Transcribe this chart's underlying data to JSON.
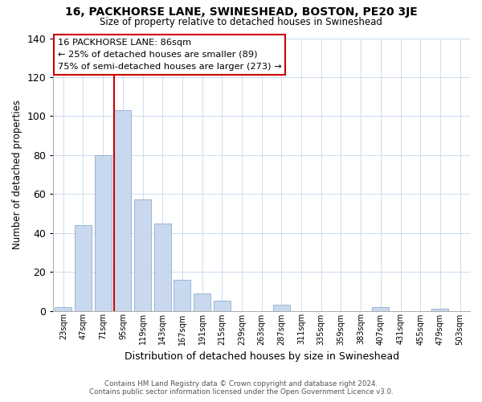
{
  "title": "16, PACKHORSE LANE, SWINESHEAD, BOSTON, PE20 3JE",
  "subtitle": "Size of property relative to detached houses in Swineshead",
  "xlabel": "Distribution of detached houses by size in Swineshead",
  "ylabel": "Number of detached properties",
  "bar_labels": [
    "23sqm",
    "47sqm",
    "71sqm",
    "95sqm",
    "119sqm",
    "143sqm",
    "167sqm",
    "191sqm",
    "215sqm",
    "239sqm",
    "263sqm",
    "287sqm",
    "311sqm",
    "335sqm",
    "359sqm",
    "383sqm",
    "407sqm",
    "431sqm",
    "455sqm",
    "479sqm",
    "503sqm"
  ],
  "bar_values": [
    2,
    44,
    80,
    103,
    57,
    45,
    16,
    9,
    5,
    0,
    0,
    3,
    0,
    0,
    0,
    0,
    2,
    0,
    0,
    1,
    0
  ],
  "bar_color": "#c8d8ee",
  "bar_edge_color": "#90acd0",
  "ylim": [
    0,
    140
  ],
  "yticks": [
    0,
    20,
    40,
    60,
    80,
    100,
    120,
    140
  ],
  "vline_color": "#cc0000",
  "vline_x": 2.57,
  "annotation_title": "16 PACKHORSE LANE: 86sqm",
  "annotation_line1": "← 25% of detached houses are smaller (89)",
  "annotation_line2": "75% of semi-detached houses are larger (273) →",
  "annotation_box_color": "#ffffff",
  "annotation_box_edge": "#cc0000",
  "footer1": "Contains HM Land Registry data © Crown copyright and database right 2024.",
  "footer2": "Contains public sector information licensed under the Open Government Licence v3.0.",
  "background_color": "#ffffff",
  "grid_color": "#ccdcee"
}
